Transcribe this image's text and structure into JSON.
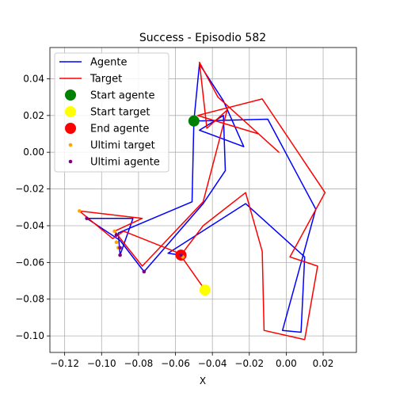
{
  "chart_data": {
    "type": "line",
    "title": "Success - Episodio 582",
    "xlabel": "X",
    "ylabel": "Y",
    "xlim": [
      -0.128,
      0.038
    ],
    "ylim": [
      -0.109,
      0.057
    ],
    "grid": true,
    "legend_position": "top-left",
    "x_ticks": [
      {
        "value": -0.12,
        "label": "−0.12"
      },
      {
        "value": -0.1,
        "label": "−0.10"
      },
      {
        "value": -0.08,
        "label": "−0.08"
      },
      {
        "value": -0.06,
        "label": "−0.06"
      },
      {
        "value": -0.04,
        "label": "−0.04"
      },
      {
        "value": -0.02,
        "label": "−0.02"
      },
      {
        "value": 0.0,
        "label": "0.00"
      },
      {
        "value": 0.02,
        "label": "0.02"
      }
    ],
    "y_ticks": [
      {
        "value": 0.04,
        "label": "0.04"
      },
      {
        "value": 0.02,
        "label": "0.02"
      },
      {
        "value": 0.0,
        "label": "0.00"
      },
      {
        "value": -0.02,
        "label": "−0.02"
      },
      {
        "value": -0.04,
        "label": "−0.04"
      },
      {
        "value": -0.06,
        "label": "−0.06"
      },
      {
        "value": -0.08,
        "label": "−0.08"
      },
      {
        "value": -0.1,
        "label": "−0.10"
      }
    ],
    "series": [
      {
        "name": "Agente",
        "kind": "line",
        "color": "#0000ff",
        "points": [
          [
            -0.05,
            0.017
          ],
          [
            -0.047,
            0.048
          ],
          [
            -0.034,
            0.028
          ],
          [
            -0.023,
            0.003
          ],
          [
            -0.047,
            0.012
          ],
          [
            -0.034,
            0.02
          ],
          [
            -0.033,
            -0.01
          ],
          [
            -0.045,
            -0.028
          ],
          [
            -0.077,
            -0.065
          ],
          [
            -0.09,
            -0.048
          ],
          [
            -0.108,
            -0.036
          ],
          [
            -0.093,
            -0.036
          ],
          [
            -0.083,
            -0.036
          ],
          [
            -0.09,
            -0.056
          ],
          [
            -0.091,
            -0.044
          ],
          [
            -0.051,
            -0.027
          ],
          [
            -0.05,
            0.017
          ],
          [
            -0.01,
            0.018
          ],
          [
            0.016,
            -0.031
          ],
          [
            -0.002,
            -0.097
          ],
          [
            0.008,
            -0.098
          ],
          [
            0.01,
            -0.057
          ],
          [
            -0.022,
            -0.028
          ],
          [
            -0.064,
            -0.055
          ],
          [
            -0.057,
            -0.056
          ]
        ]
      },
      {
        "name": "Target",
        "kind": "line",
        "color": "#ff0000",
        "points": [
          [
            -0.044,
            -0.075
          ],
          [
            -0.058,
            -0.055
          ],
          [
            -0.088,
            -0.043
          ],
          [
            -0.094,
            -0.047
          ],
          [
            -0.112,
            -0.032
          ],
          [
            -0.078,
            -0.036
          ],
          [
            -0.093,
            -0.043
          ],
          [
            -0.078,
            -0.062
          ],
          [
            -0.045,
            -0.027
          ],
          [
            -0.032,
            0.023
          ],
          [
            -0.043,
            0.013
          ],
          [
            -0.047,
            0.049
          ],
          [
            -0.037,
            0.03
          ],
          [
            -0.004,
            0.0
          ],
          [
            -0.015,
            0.01
          ],
          [
            -0.048,
            0.02
          ],
          [
            -0.013,
            0.029
          ],
          [
            0.021,
            -0.022
          ],
          [
            0.002,
            -0.057
          ],
          [
            0.017,
            -0.062
          ],
          [
            0.01,
            -0.102
          ],
          [
            -0.012,
            -0.097
          ],
          [
            -0.013,
            -0.054
          ],
          [
            -0.022,
            -0.022
          ],
          [
            -0.045,
            -0.04
          ],
          [
            -0.057,
            -0.056
          ]
        ]
      },
      {
        "name": "Start agente",
        "kind": "marker",
        "color": "#008000",
        "radius": 7,
        "points": [
          [
            -0.05,
            0.017
          ]
        ]
      },
      {
        "name": "Start target",
        "kind": "marker",
        "color": "#ffff00",
        "radius": 7,
        "points": [
          [
            -0.044,
            -0.075
          ]
        ]
      },
      {
        "name": "End agente",
        "kind": "marker",
        "color": "#ff0000",
        "radius": 7,
        "points": [
          [
            -0.057,
            -0.056
          ]
        ]
      },
      {
        "name": "Ultimi target",
        "kind": "scatter",
        "color": "#ffa500",
        "radius": 2.3,
        "points": [
          [
            -0.112,
            -0.032
          ],
          [
            -0.093,
            -0.043
          ],
          [
            -0.092,
            -0.049
          ],
          [
            -0.091,
            -0.052
          ],
          [
            -0.057,
            -0.056
          ],
          [
            -0.056,
            -0.057
          ]
        ]
      },
      {
        "name": "Ultimi agente",
        "kind": "scatter",
        "color": "#800080",
        "radius": 2.3,
        "points": [
          [
            -0.108,
            -0.036
          ],
          [
            -0.092,
            -0.045
          ],
          [
            -0.09,
            -0.052
          ],
          [
            -0.09,
            -0.056
          ],
          [
            -0.077,
            -0.065
          ],
          [
            -0.057,
            -0.056
          ]
        ]
      }
    ]
  }
}
